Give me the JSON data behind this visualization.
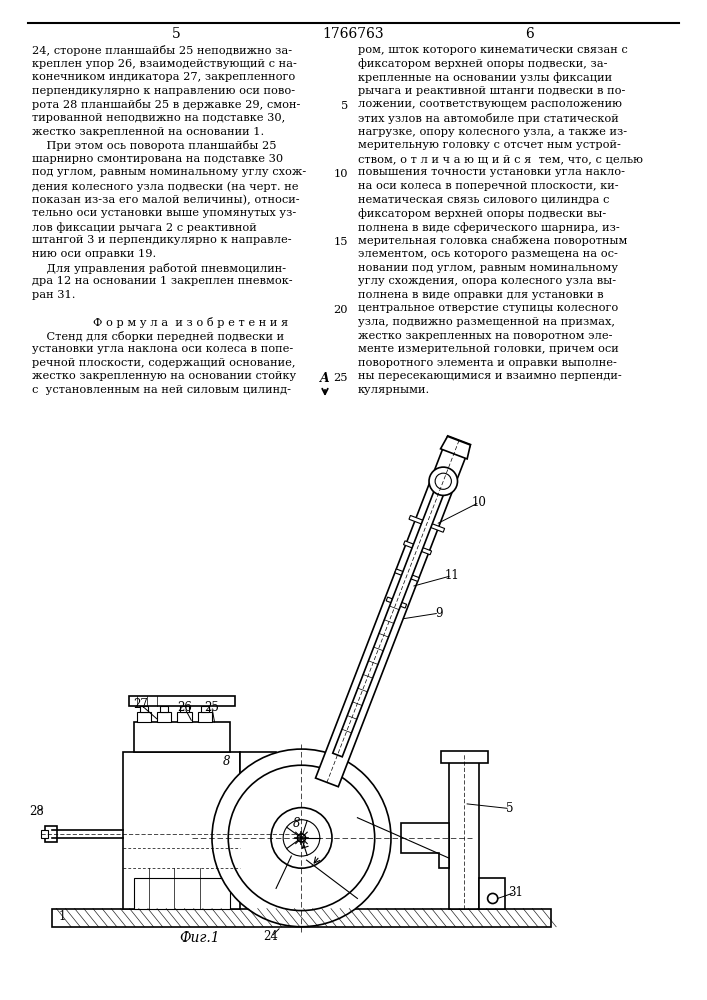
{
  "page_num_left": "5",
  "page_num_center": "1766763",
  "page_num_right": "6",
  "left_col": [
    "24, стороне планшайбы 25 неподвижно за-",
    "креплен упор 26, взаимодействующий с на-",
    "конечником индикатора 27, закрепленного",
    "перпендикулярно к направлению оси пово-",
    "рота 28 планшайбы 25 в державке 29, смон-",
    "тированной неподвижно на подставке 30,",
    "жестко закрепленной на основании 1.",
    "    При этом ось поворота планшайбы 25",
    "шарнирно смонтирована на подставке 30",
    "под углом, равным номинальному углу схож-",
    "дения колесного узла подвески (на черт. не",
    "показан из-за его малой величины), относи-",
    "тельно оси установки выше упомянутых уз-",
    "лов фиксации рычага 2 с реактивной",
    "штангой 3 и перпендикулярно к направле-",
    "нию оси оправки 19.",
    "    Для управления работой пневмоцилин-",
    "дра 12 на основании 1 закреплен пневмок-",
    "ран 31.",
    "",
    "        Ф о р м у л а  и з о б р е т е н и я",
    "    Стенд для сборки передней подвески и",
    "установки угла наклона оси колеса в попе-",
    "речной плоскости, содержащий основание,",
    "жестко закрепленную на основании стойку",
    "с  установленным на ней силовым цилинд-"
  ],
  "right_col": [
    "ром, шток которого кинематически связан с",
    "фиксатором верхней опоры подвески, за-",
    "крепленные на основании узлы фиксации",
    "рычага и реактивной штанги подвески в по-",
    "ложении, соответствующем расположению",
    "этих узлов на автомобиле при статической",
    "нагрузке, опору колесного узла, а также из-",
    "мерительную головку с отсчет ным устрой-",
    "ством, о т л и ч а ю щ и й с я  тем, что, с целью",
    "повышения точности установки угла накло-",
    "на оси колеса в поперечной плоскости, ки-",
    "нематическая связь силового цилиндра с",
    "фиксатором верхней опоры подвески вы-",
    "полнена в виде сферического шарнира, из-",
    "мерительная головка снабжена поворотным",
    "элементом, ось которого размещена на ос-",
    "новании под углом, равным номинальному",
    "углу схождения, опора колесного узла вы-",
    "полнена в виде оправки для установки в",
    "центральное отверстие ступицы колесного",
    "узла, подвижно размещенной на призмах,",
    "жестко закрепленных на поворотном эле-",
    "менте измерительной головки, причем оси",
    "поворотного элемента и оправки выполне-",
    "ны пересекающимися и взаимно перпенди-",
    "кулярными."
  ],
  "fig_label": "Фиг.1",
  "bg_color": "#ffffff",
  "text_color": "#000000",
  "lw_thick": 1.2,
  "lw_med": 0.8,
  "lw_thin": 0.5
}
